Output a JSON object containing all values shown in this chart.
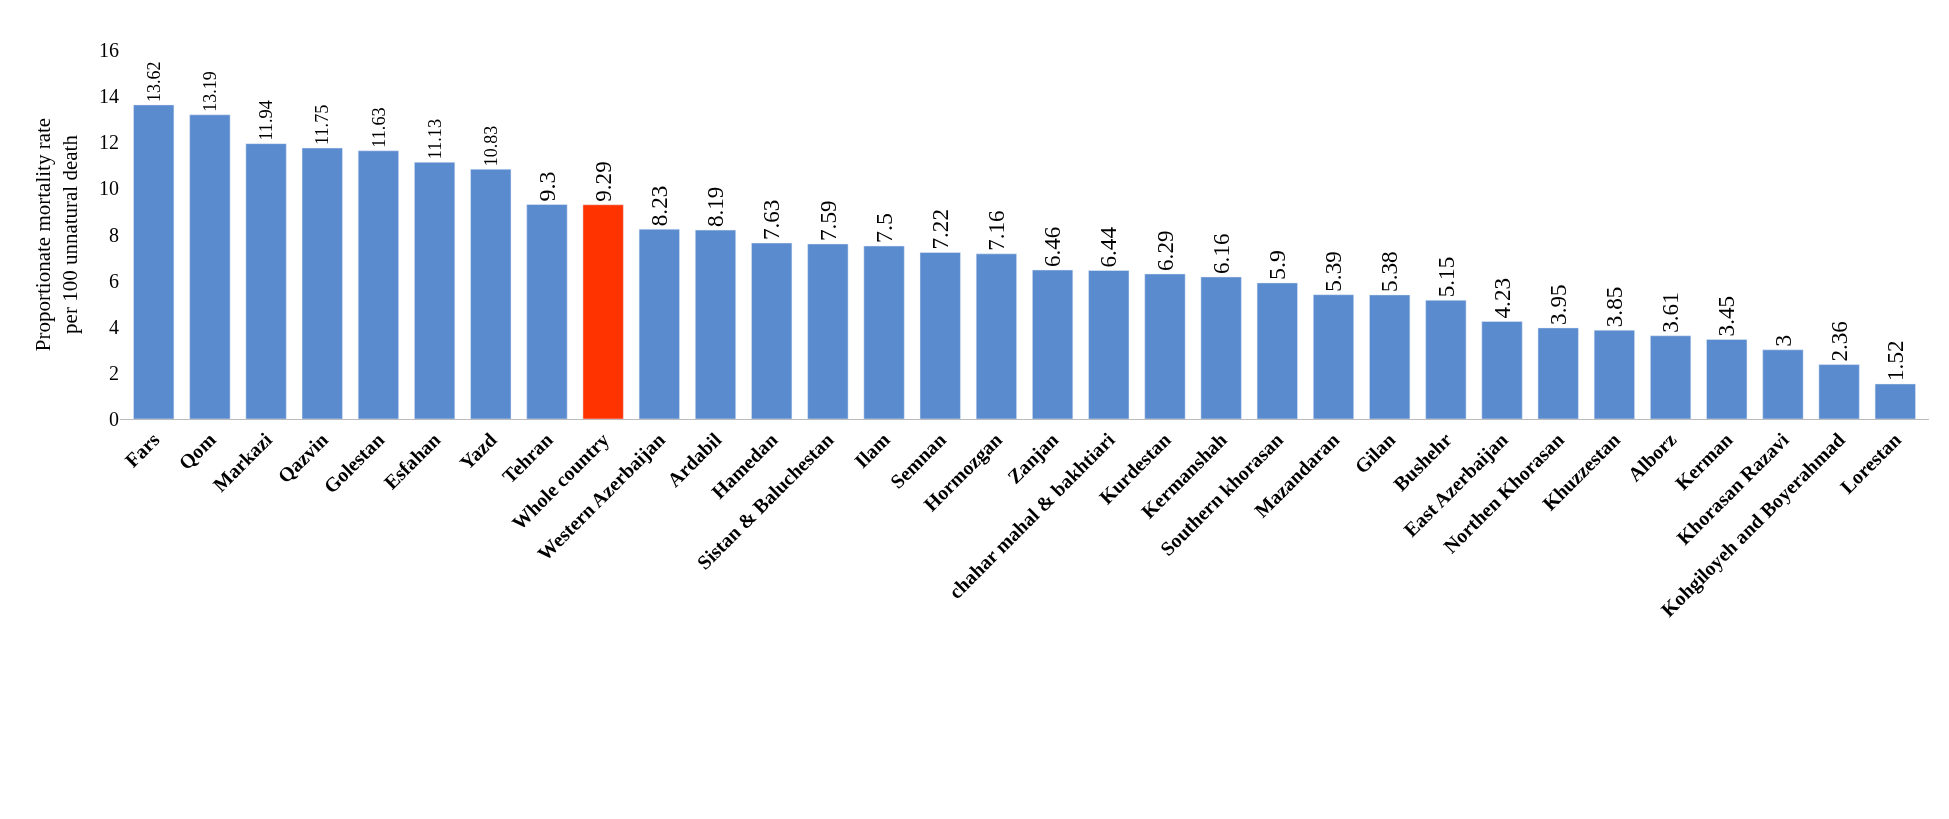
{
  "chart_data": {
    "type": "bar",
    "ylabel": "Proportionate mortality rate per 100 unnatural death",
    "categories": [
      "Fars",
      "Qom",
      "Markazi",
      "Qazvin",
      "Golestan",
      "Esfahan",
      "Yazd",
      "Tehran",
      "Whole country",
      "Western Azerbaijan",
      "Ardabil",
      "Hamedan",
      "Sistan & Baluchestan",
      "Ilam",
      "Semnan",
      "Hormozgan",
      "Zanjan",
      "chahar mahal & bakhtiari",
      "Kurdestan",
      "Kermanshah",
      "Southern khorasan",
      "Mazandaran",
      "Gilan",
      "Bushehr",
      "East Azerbaijan",
      "Northen Khorasan",
      "Khuzzestan",
      "Alborz",
      "Kerman",
      "Khorasan Razavi",
      "Kohgiloyeh and Boyerahmad",
      "Lorestan"
    ],
    "values": [
      13.62,
      13.19,
      11.94,
      11.75,
      11.63,
      11.13,
      10.83,
      9.3,
      9.29,
      8.23,
      8.19,
      7.63,
      7.59,
      7.5,
      7.22,
      7.16,
      6.46,
      6.44,
      6.29,
      6.16,
      5.9,
      5.39,
      5.38,
      5.15,
      4.23,
      3.95,
      3.85,
      3.61,
      3.45,
      3,
      2.36,
      1.52
    ],
    "colors": [
      "#5b8bcf",
      "#5b8bcf",
      "#5b8bcf",
      "#5b8bcf",
      "#5b8bcf",
      "#5b8bcf",
      "#5b8bcf",
      "#5b8bcf",
      "#ff3300",
      "#5b8bcf",
      "#5b8bcf",
      "#5b8bcf",
      "#5b8bcf",
      "#5b8bcf",
      "#5b8bcf",
      "#5b8bcf",
      "#5b8bcf",
      "#5b8bcf",
      "#5b8bcf",
      "#5b8bcf",
      "#5b8bcf",
      "#5b8bcf",
      "#5b8bcf",
      "#5b8bcf",
      "#5b8bcf",
      "#5b8bcf",
      "#5b8bcf",
      "#5b8bcf",
      "#5b8bcf",
      "#5b8bcf",
      "#5b8bcf",
      "#5b8bcf"
    ],
    "ylim": [
      0,
      16
    ],
    "yticks": [
      0,
      2,
      4,
      6,
      8,
      10,
      12,
      14,
      16
    ],
    "data_labels": true
  }
}
